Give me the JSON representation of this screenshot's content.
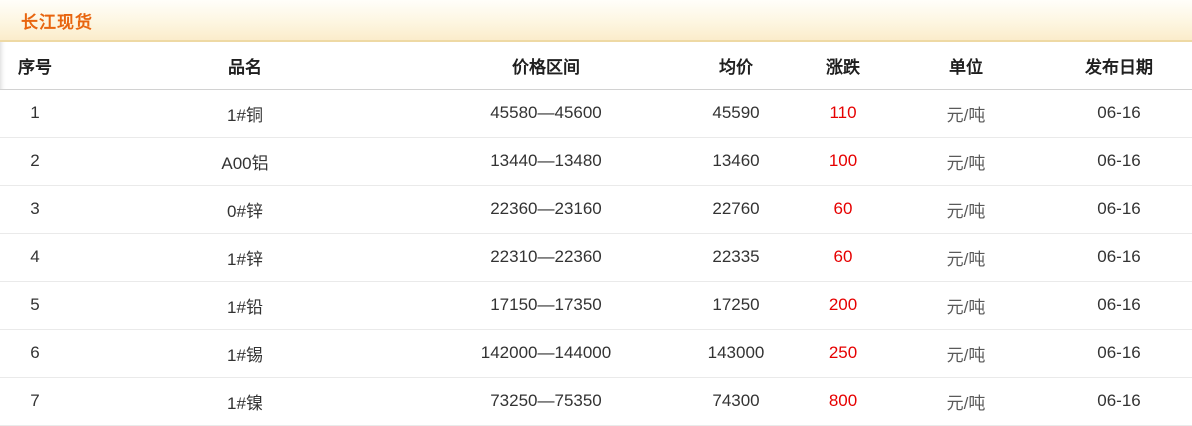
{
  "panel": {
    "title": "长江现货"
  },
  "table": {
    "columns": [
      "序号",
      "品名",
      "价格区间",
      "均价",
      "涨跌",
      "单位",
      "发布日期"
    ],
    "rows": [
      {
        "seq": "1",
        "name": "1#铜",
        "range": "45580—45600",
        "avg": "45590",
        "change": "110",
        "unit": "元/吨",
        "date": "06-16"
      },
      {
        "seq": "2",
        "name": "A00铝",
        "range": "13440—13480",
        "avg": "13460",
        "change": "100",
        "unit": "元/吨",
        "date": "06-16"
      },
      {
        "seq": "3",
        "name": "0#锌",
        "range": "22360—23160",
        "avg": "22760",
        "change": "60",
        "unit": "元/吨",
        "date": "06-16"
      },
      {
        "seq": "4",
        "name": "1#锌",
        "range": "22310—22360",
        "avg": "22335",
        "change": "60",
        "unit": "元/吨",
        "date": "06-16"
      },
      {
        "seq": "5",
        "name": "1#铅",
        "range": "17150—17350",
        "avg": "17250",
        "change": "200",
        "unit": "元/吨",
        "date": "06-16"
      },
      {
        "seq": "6",
        "name": "1#锡",
        "range": "142000—144000",
        "avg": "143000",
        "change": "250",
        "unit": "元/吨",
        "date": "06-16"
      },
      {
        "seq": "7",
        "name": "1#镍",
        "range": "73250—75350",
        "avg": "74300",
        "change": "800",
        "unit": "元/吨",
        "date": "06-16"
      }
    ]
  },
  "colors": {
    "title_text": "#e8650f",
    "title_bar_gradient_top": "#fffefa",
    "title_bar_gradient_bottom": "#fbeccb",
    "title_bar_border": "#eed9a4",
    "change_value": "#e60000",
    "unit_text": "#5a5a5a",
    "body_text": "#333333",
    "header_text": "#1f1f1f"
  }
}
